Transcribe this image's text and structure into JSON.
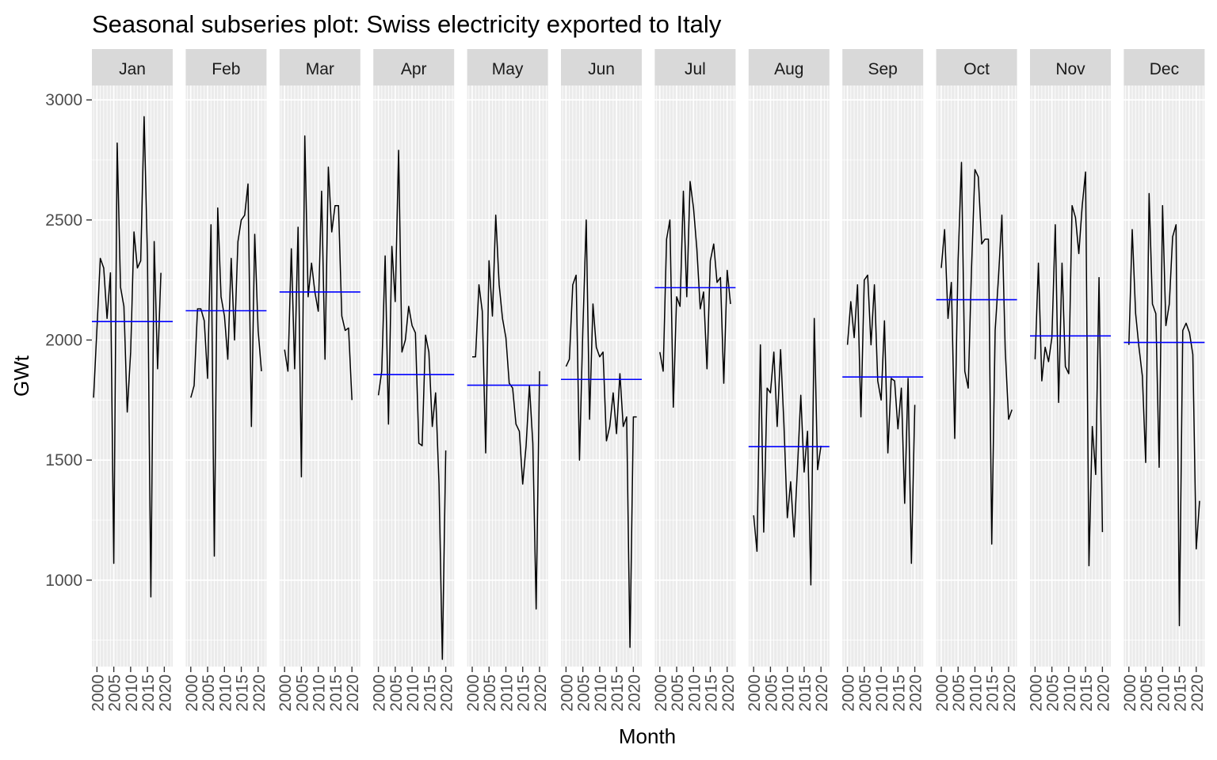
{
  "chart_data": {
    "type": "line",
    "title": "Seasonal subseries plot: Swiss electricity exported to Italy",
    "xlabel": "Month",
    "ylabel": "GWt",
    "ylim": [
      640,
      3060
    ],
    "yticks": [
      1000,
      1500,
      2000,
      2500,
      3000
    ],
    "xlim": [
      1998.5,
      2022.5
    ],
    "xticks": [
      2000,
      2005,
      2010,
      2015,
      2020
    ],
    "grid": true,
    "legend": "none",
    "series_color": "#000000",
    "mean_color": "#0000ff",
    "facets": [
      {
        "label": "Jan",
        "mean": 2077,
        "x": [
          1999,
          2000,
          2001,
          2002,
          2003,
          2004,
          2005,
          2006,
          2007,
          2008,
          2009,
          2010,
          2011,
          2012,
          2013,
          2014,
          2015,
          2016,
          2017,
          2018,
          2019
        ],
        "values": [
          1760,
          2050,
          2340,
          2300,
          2090,
          2280,
          1070,
          2820,
          2220,
          2140,
          1700,
          1950,
          2450,
          2300,
          2330,
          2930,
          2350,
          930,
          2410,
          1880,
          2280
        ]
      },
      {
        "label": "Feb",
        "mean": 2122,
        "x": [
          2000,
          2001,
          2002,
          2003,
          2004,
          2005,
          2006,
          2007,
          2008,
          2009,
          2010,
          2011,
          2012,
          2013,
          2014,
          2015,
          2016,
          2017,
          2018,
          2019,
          2020,
          2021
        ],
        "values": [
          1760,
          1810,
          2130,
          2130,
          2080,
          1840,
          2480,
          1100,
          2550,
          2180,
          2100,
          1920,
          2340,
          2000,
          2410,
          2500,
          2520,
          2650,
          1640,
          2440,
          2040,
          1870
        ]
      },
      {
        "label": "Mar",
        "mean": 2200,
        "x": [
          2000,
          2001,
          2002,
          2003,
          2004,
          2005,
          2006,
          2007,
          2008,
          2009,
          2010,
          2011,
          2012,
          2013,
          2014,
          2015,
          2016,
          2017,
          2018,
          2019,
          2020
        ],
        "values": [
          1960,
          1870,
          2380,
          1880,
          2470,
          1430,
          2850,
          2180,
          2320,
          2200,
          2120,
          2620,
          1920,
          2720,
          2450,
          2560,
          2560,
          2100,
          2040,
          2050,
          1750
        ]
      },
      {
        "label": "Apr",
        "mean": 1856,
        "x": [
          2000,
          2001,
          2002,
          2003,
          2004,
          2005,
          2006,
          2007,
          2008,
          2009,
          2010,
          2011,
          2012,
          2013,
          2014,
          2015,
          2016,
          2017,
          2018,
          2019,
          2020
        ],
        "values": [
          1770,
          1870,
          2350,
          1650,
          2390,
          2160,
          2790,
          1950,
          2000,
          2140,
          2060,
          2030,
          1570,
          1560,
          2020,
          1950,
          1640,
          1780,
          1400,
          670,
          1540
        ]
      },
      {
        "label": "May",
        "mean": 1812,
        "x": [
          2000,
          2001,
          2002,
          2003,
          2004,
          2005,
          2006,
          2007,
          2008,
          2009,
          2010,
          2011,
          2012,
          2013,
          2014,
          2015,
          2016,
          2017,
          2018,
          2019,
          2020
        ],
        "values": [
          1930,
          1930,
          2230,
          2120,
          1530,
          2330,
          2100,
          2520,
          2230,
          2090,
          2010,
          1820,
          1800,
          1650,
          1620,
          1400,
          1560,
          1810,
          1570,
          880,
          1870
        ]
      },
      {
        "label": "Jun",
        "mean": 1836,
        "x": [
          2000,
          2001,
          2002,
          2003,
          2004,
          2005,
          2006,
          2007,
          2008,
          2009,
          2010,
          2011,
          2012,
          2013,
          2014,
          2015,
          2016,
          2017,
          2018,
          2019,
          2020,
          2021
        ],
        "values": [
          1890,
          1920,
          2230,
          2270,
          1500,
          2040,
          2500,
          1670,
          2150,
          1970,
          1930,
          1950,
          1580,
          1640,
          1780,
          1610,
          1860,
          1640,
          1680,
          720,
          1680,
          1680
        ]
      },
      {
        "label": "Jul",
        "mean": 2218,
        "x": [
          2000,
          2001,
          2002,
          2003,
          2004,
          2005,
          2006,
          2007,
          2008,
          2009,
          2010,
          2011,
          2012,
          2013,
          2014,
          2015,
          2016,
          2017,
          2018,
          2019,
          2020,
          2021
        ],
        "values": [
          1950,
          1870,
          2420,
          2500,
          1720,
          2180,
          2140,
          2620,
          2180,
          2660,
          2550,
          2380,
          2130,
          2200,
          1880,
          2330,
          2400,
          2240,
          2260,
          1820,
          2290,
          2150
        ]
      },
      {
        "label": "Aug",
        "mean": 1556,
        "x": [
          2000,
          2001,
          2002,
          2003,
          2004,
          2005,
          2006,
          2007,
          2008,
          2009,
          2010,
          2011,
          2012,
          2013,
          2014,
          2015,
          2016,
          2017,
          2018,
          2019,
          2020
        ],
        "values": [
          1270,
          1120,
          1980,
          1200,
          1800,
          1780,
          1950,
          1640,
          1960,
          1650,
          1260,
          1410,
          1180,
          1460,
          1770,
          1450,
          1620,
          980,
          2090,
          1460,
          1560
        ]
      },
      {
        "label": "Sep",
        "mean": 1846,
        "x": [
          2000,
          2001,
          2002,
          2003,
          2004,
          2005,
          2006,
          2007,
          2008,
          2009,
          2010,
          2011,
          2012,
          2013,
          2014,
          2015,
          2016,
          2017,
          2018,
          2019,
          2020
        ],
        "values": [
          1980,
          2160,
          2010,
          2230,
          1680,
          2250,
          2270,
          1980,
          2230,
          1830,
          1750,
          2080,
          1530,
          1840,
          1830,
          1630,
          1800,
          1320,
          1840,
          1070,
          1730
        ]
      },
      {
        "label": "Oct",
        "mean": 2168,
        "x": [
          2000,
          2001,
          2002,
          2003,
          2004,
          2005,
          2006,
          2007,
          2008,
          2009,
          2010,
          2011,
          2012,
          2013,
          2014,
          2015,
          2016,
          2017,
          2018,
          2019,
          2020,
          2021
        ],
        "values": [
          2300,
          2460,
          2090,
          2240,
          1590,
          2330,
          2740,
          1870,
          1800,
          2300,
          2710,
          2680,
          2400,
          2420,
          2420,
          1150,
          2040,
          2260,
          2520,
          1960,
          1670,
          1710
        ]
      },
      {
        "label": "Nov",
        "mean": 2017,
        "x": [
          2000,
          2001,
          2002,
          2003,
          2004,
          2005,
          2006,
          2007,
          2008,
          2009,
          2010,
          2011,
          2012,
          2013,
          2014,
          2015,
          2016,
          2017,
          2018,
          2019,
          2020
        ],
        "values": [
          1920,
          2320,
          1830,
          1970,
          1910,
          2010,
          2480,
          1740,
          2320,
          1890,
          1860,
          2560,
          2510,
          2360,
          2560,
          2700,
          1060,
          1640,
          1440,
          2260,
          1200
        ]
      },
      {
        "label": "Dec",
        "mean": 1990,
        "x": [
          2000,
          2001,
          2002,
          2003,
          2004,
          2005,
          2006,
          2007,
          2008,
          2009,
          2010,
          2011,
          2012,
          2013,
          2014,
          2015,
          2016,
          2017,
          2018,
          2019,
          2020,
          2021
        ],
        "values": [
          1980,
          2460,
          2110,
          1970,
          1850,
          1490,
          2610,
          2150,
          2110,
          1470,
          2560,
          2060,
          2150,
          2430,
          2480,
          810,
          2040,
          2070,
          2030,
          1940,
          1130,
          1330
        ]
      }
    ]
  }
}
